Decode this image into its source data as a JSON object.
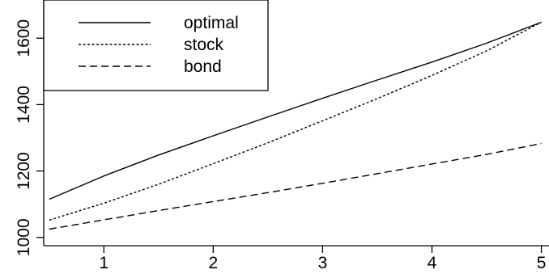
{
  "chart_data": {
    "type": "line",
    "title": "",
    "xlabel": "",
    "ylabel": "",
    "xlim": [
      0.45,
      5.07
    ],
    "ylim": [
      975,
      1715
    ],
    "x_ticks": [
      1,
      2,
      3,
      4,
      5
    ],
    "y_ticks": [
      1000,
      1200,
      1400,
      1600
    ],
    "grid": false,
    "legend_position": "top-left",
    "series": [
      {
        "name": "optimal",
        "line_style": "solid",
        "x": [
          0.5,
          1,
          1.5,
          2,
          2.5,
          3,
          3.5,
          4,
          4.5,
          5
        ],
        "y": [
          1115,
          1185,
          1248,
          1306,
          1363,
          1419,
          1474,
          1528,
          1585,
          1648
        ]
      },
      {
        "name": "stock",
        "line_style": "dotted",
        "x": [
          0.5,
          1,
          1.5,
          2,
          2.5,
          3,
          3.5,
          4,
          4.5,
          5
        ],
        "y": [
          1052,
          1103,
          1160,
          1222,
          1285,
          1351,
          1418,
          1488,
          1562,
          1648
        ]
      },
      {
        "name": "bond",
        "line_style": "dashed",
        "x": [
          0.5,
          1,
          1.5,
          2,
          2.5,
          3,
          3.5,
          4,
          4.5,
          5
        ],
        "y": [
          1025,
          1053,
          1081,
          1108,
          1135,
          1163,
          1192,
          1221,
          1250,
          1283
        ]
      }
    ]
  }
}
